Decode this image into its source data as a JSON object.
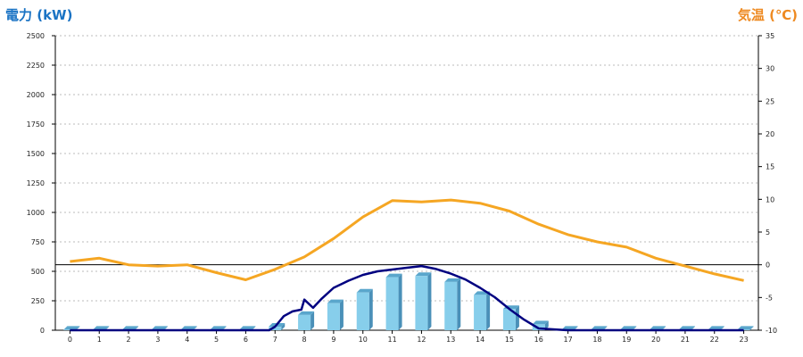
{
  "chart_data": {
    "type": "bar",
    "left_axis_title": "電力 (kW)",
    "right_axis_title": "気温 (℃)",
    "categories": [
      "0",
      "1",
      "2",
      "3",
      "4",
      "5",
      "6",
      "7",
      "8",
      "9",
      "10",
      "11",
      "12",
      "13",
      "14",
      "15",
      "16",
      "17",
      "18",
      "19",
      "20",
      "21",
      "22",
      "23"
    ],
    "left_ylim": [
      0,
      2500
    ],
    "left_ticks": [
      "0",
      "250",
      "500",
      "750",
      "1000",
      "1250",
      "1500",
      "1750",
      "2000",
      "2250",
      "2500"
    ],
    "right_ylim": [
      -10,
      35
    ],
    "right_ticks": [
      "-10",
      "-5",
      "0",
      "5",
      "10",
      "15",
      "20",
      "25",
      "30",
      "35"
    ],
    "grid": "horizontal-dashed",
    "series": [
      {
        "kind": "bar",
        "axis": "left",
        "color": "#87ceeb",
        "values": [
          5,
          5,
          5,
          5,
          5,
          5,
          5,
          30,
          130,
          230,
          320,
          450,
          460,
          410,
          300,
          180,
          50,
          5,
          5,
          5,
          5,
          5,
          5,
          5
        ]
      },
      {
        "kind": "line",
        "axis": "left",
        "color": "#000080",
        "x": [
          0,
          1,
          2,
          3,
          4,
          5,
          6,
          6.8,
          7,
          7.3,
          7.6,
          7.9,
          8.0,
          8.3,
          8.6,
          9,
          9.5,
          10,
          10.5,
          11,
          11.5,
          12,
          12.5,
          13,
          13.5,
          14,
          14.5,
          15,
          15.5,
          16,
          17,
          18,
          19,
          20,
          21,
          22,
          23
        ],
        "values": [
          0,
          0,
          0,
          0,
          0,
          0,
          0,
          0,
          30,
          120,
          160,
          175,
          260,
          190,
          270,
          360,
          420,
          470,
          500,
          515,
          530,
          545,
          520,
          480,
          430,
          360,
          280,
          180,
          90,
          15,
          0,
          0,
          0,
          0,
          0,
          0,
          0
        ]
      },
      {
        "kind": "line",
        "axis": "right",
        "color": "#f5a623",
        "values": [
          0.5,
          1.0,
          0.0,
          -0.2,
          0.0,
          -1.2,
          -2.3,
          -0.7,
          1.2,
          4.0,
          7.3,
          9.8,
          9.6,
          9.9,
          9.4,
          8.2,
          6.2,
          4.6,
          3.5,
          2.7,
          1.0,
          -0.2,
          -1.4,
          -2.4
        ]
      }
    ]
  }
}
